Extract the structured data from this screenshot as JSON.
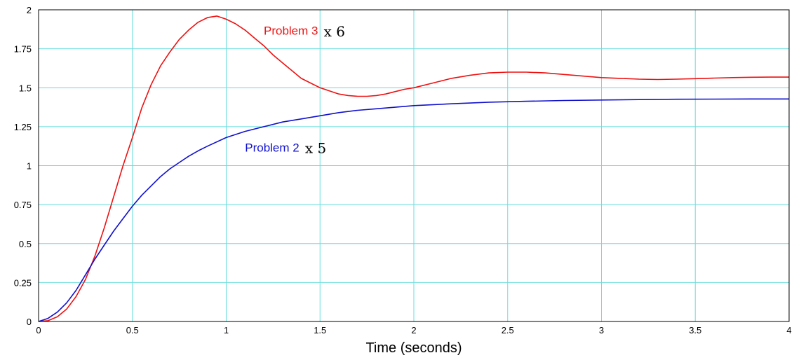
{
  "chart_data": {
    "type": "line",
    "title": "",
    "xlabel": "Time (seconds)",
    "ylabel": "",
    "xlim": [
      0,
      4
    ],
    "ylim": [
      0,
      2
    ],
    "x_ticks": [
      "0",
      "0.5",
      "1",
      "1.5",
      "2",
      "2.5",
      "3",
      "3.5",
      "4"
    ],
    "y_ticks": [
      "0",
      "0.25",
      "0.5",
      "0.75",
      "1",
      "1.25",
      "1.5",
      "1.75",
      "2"
    ],
    "grid": true,
    "grid_color": "#66dddd",
    "series": [
      {
        "name": "Problem 3",
        "color": "#ee1111",
        "points": [
          [
            0,
            0
          ],
          [
            0.05,
            0.005
          ],
          [
            0.1,
            0.03
          ],
          [
            0.15,
            0.08
          ],
          [
            0.2,
            0.16
          ],
          [
            0.25,
            0.27
          ],
          [
            0.3,
            0.42
          ],
          [
            0.35,
            0.6
          ],
          [
            0.4,
            0.8
          ],
          [
            0.45,
            1.0
          ],
          [
            0.5,
            1.18
          ],
          [
            0.55,
            1.37
          ],
          [
            0.6,
            1.52
          ],
          [
            0.65,
            1.64
          ],
          [
            0.7,
            1.73
          ],
          [
            0.75,
            1.81
          ],
          [
            0.8,
            1.87
          ],
          [
            0.85,
            1.92
          ],
          [
            0.9,
            1.95
          ],
          [
            0.95,
            1.96
          ],
          [
            1.0,
            1.94
          ],
          [
            1.05,
            1.91
          ],
          [
            1.1,
            1.87
          ],
          [
            1.15,
            1.82
          ],
          [
            1.2,
            1.77
          ],
          [
            1.25,
            1.71
          ],
          [
            1.3,
            1.66
          ],
          [
            1.35,
            1.61
          ],
          [
            1.4,
            1.56
          ],
          [
            1.45,
            1.53
          ],
          [
            1.5,
            1.5
          ],
          [
            1.55,
            1.48
          ],
          [
            1.6,
            1.46
          ],
          [
            1.65,
            1.45
          ],
          [
            1.7,
            1.445
          ],
          [
            1.75,
            1.445
          ],
          [
            1.8,
            1.45
          ],
          [
            1.85,
            1.46
          ],
          [
            1.9,
            1.475
          ],
          [
            1.95,
            1.49
          ],
          [
            2.0,
            1.5
          ],
          [
            2.1,
            1.53
          ],
          [
            2.2,
            1.56
          ],
          [
            2.3,
            1.58
          ],
          [
            2.4,
            1.595
          ],
          [
            2.5,
            1.6
          ],
          [
            2.6,
            1.6
          ],
          [
            2.7,
            1.595
          ],
          [
            2.8,
            1.585
          ],
          [
            2.9,
            1.575
          ],
          [
            3.0,
            1.565
          ],
          [
            3.1,
            1.56
          ],
          [
            3.2,
            1.555
          ],
          [
            3.3,
            1.553
          ],
          [
            3.4,
            1.555
          ],
          [
            3.5,
            1.558
          ],
          [
            3.6,
            1.562
          ],
          [
            3.7,
            1.565
          ],
          [
            3.8,
            1.567
          ],
          [
            3.9,
            1.568
          ],
          [
            4.0,
            1.568
          ]
        ]
      },
      {
        "name": "Problem 2",
        "color": "#1111cc",
        "points": [
          [
            0,
            0
          ],
          [
            0.05,
            0.02
          ],
          [
            0.1,
            0.06
          ],
          [
            0.15,
            0.12
          ],
          [
            0.2,
            0.2
          ],
          [
            0.25,
            0.3
          ],
          [
            0.3,
            0.4
          ],
          [
            0.35,
            0.49
          ],
          [
            0.4,
            0.58
          ],
          [
            0.45,
            0.66
          ],
          [
            0.5,
            0.74
          ],
          [
            0.55,
            0.81
          ],
          [
            0.6,
            0.87
          ],
          [
            0.65,
            0.93
          ],
          [
            0.7,
            0.98
          ],
          [
            0.75,
            1.02
          ],
          [
            0.8,
            1.06
          ],
          [
            0.85,
            1.095
          ],
          [
            0.9,
            1.125
          ],
          [
            1.0,
            1.18
          ],
          [
            1.1,
            1.22
          ],
          [
            1.2,
            1.25
          ],
          [
            1.3,
            1.28
          ],
          [
            1.4,
            1.3
          ],
          [
            1.5,
            1.32
          ],
          [
            1.6,
            1.34
          ],
          [
            1.7,
            1.355
          ],
          [
            1.8,
            1.365
          ],
          [
            1.9,
            1.375
          ],
          [
            2.0,
            1.385
          ],
          [
            2.2,
            1.397
          ],
          [
            2.4,
            1.407
          ],
          [
            2.6,
            1.413
          ],
          [
            2.8,
            1.418
          ],
          [
            3.0,
            1.421
          ],
          [
            3.2,
            1.424
          ],
          [
            3.4,
            1.426
          ],
          [
            3.6,
            1.427
          ],
          [
            3.8,
            1.428
          ],
          [
            4.0,
            1.428
          ]
        ]
      }
    ],
    "labels": [
      {
        "text": "Problem 3",
        "series": 0,
        "x": 1.2,
        "y": 1.84
      },
      {
        "text": "Problem 2",
        "series": 1,
        "x": 1.1,
        "y": 1.09
      }
    ],
    "overlay_labels": [
      {
        "text": "x 6",
        "x": 1.52,
        "y": 1.83
      },
      {
        "text": "x 5",
        "x": 1.42,
        "y": 1.08
      }
    ]
  }
}
